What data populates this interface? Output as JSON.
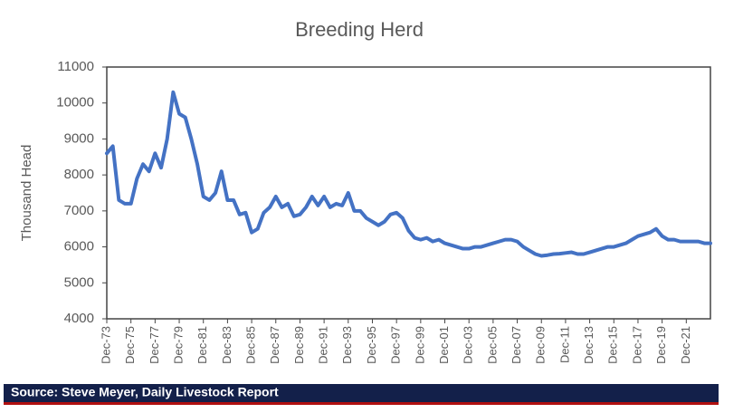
{
  "chart_data": {
    "type": "line",
    "title": "Breeding Herd",
    "y_label": "Thousand Head",
    "source": "Source: Steve Meyer, Daily Livestock Report",
    "color": "#4472c4",
    "categories": [
      "Dec-73",
      null,
      null,
      null,
      "Dec-75",
      null,
      null,
      null,
      "Dec-77",
      null,
      null,
      null,
      "Dec-79",
      null,
      null,
      null,
      "Dec-81",
      null,
      null,
      null,
      "Dec-83",
      null,
      null,
      null,
      "Dec-85",
      null,
      null,
      null,
      "Dec-87",
      null,
      null,
      null,
      "Dec-89",
      null,
      null,
      null,
      "Dec-91",
      null,
      null,
      null,
      "Dec-93",
      null,
      null,
      null,
      "Dec-95",
      null,
      null,
      null,
      "Dec-97",
      null,
      null,
      null,
      "Dec-99",
      null,
      null,
      null,
      "Dec-01",
      null,
      null,
      null,
      "Dec-03",
      null,
      null,
      null,
      "Dec-05",
      null,
      null,
      null,
      "Dec-07",
      null,
      null,
      null,
      "Dec-09",
      null,
      null,
      null,
      "Dec-11",
      null,
      null,
      null,
      "Dec-13",
      null,
      null,
      null,
      "Dec-15",
      null,
      null,
      null,
      "Dec-17",
      null,
      null,
      null,
      "Dec-19",
      null,
      null,
      null,
      "Dec-21",
      null,
      null,
      null,
      null
    ],
    "values": [
      8600,
      8800,
      7300,
      7200,
      7200,
      7900,
      8300,
      8100,
      8600,
      8200,
      9000,
      10300,
      9700,
      9600,
      9000,
      8300,
      7400,
      7300,
      7500,
      8100,
      7300,
      7300,
      6900,
      6950,
      6400,
      6500,
      6950,
      7100,
      7400,
      7100,
      7200,
      6850,
      6900,
      7100,
      7400,
      7150,
      7400,
      7100,
      7200,
      7150,
      7500,
      7000,
      7000,
      6800,
      6700,
      6600,
      6700,
      6900,
      6950,
      6800,
      6450,
      6250,
      6200,
      6250,
      6150,
      6200,
      6100,
      6050,
      6000,
      5950,
      5950,
      6000,
      6000,
      6050,
      6100,
      6150,
      6200,
      6200,
      6150,
      6000,
      5900,
      5800,
      5750,
      5770,
      5800,
      5810,
      5830,
      5850,
      5800,
      5800,
      5850,
      5900,
      5950,
      6000,
      6000,
      6050,
      6100,
      6200,
      6300,
      6350,
      6400,
      6500,
      6300,
      6200,
      6200,
      6150,
      6150,
      6150,
      6150,
      6100,
      6100
    ],
    "ylim": [
      4000,
      11000
    ],
    "yticks": [
      4000,
      5000,
      6000,
      7000,
      8000,
      9000,
      10000,
      11000
    ],
    "grid": false
  }
}
